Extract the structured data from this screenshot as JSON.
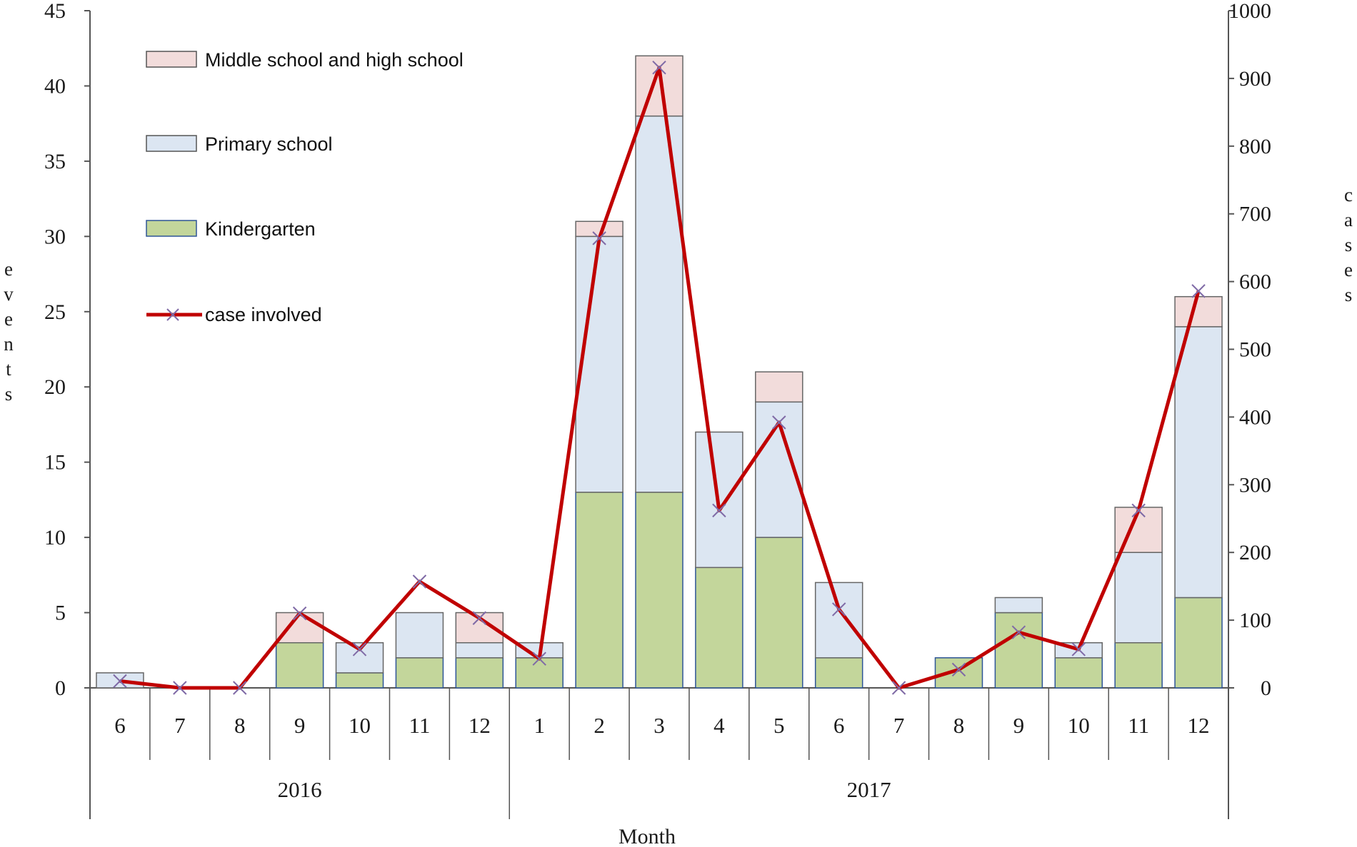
{
  "chart_data": {
    "type": "bar",
    "stacked": true,
    "title": "",
    "categories": [
      "6",
      "7",
      "8",
      "9",
      "10",
      "11",
      "12",
      "1",
      "2",
      "3",
      "4",
      "5",
      "6",
      "7",
      "8",
      "9",
      "10",
      "11",
      "12"
    ],
    "year_groups": [
      {
        "label": "2016",
        "count": 7
      },
      {
        "label": "2017",
        "count": 12
      }
    ],
    "xlabel": "Month",
    "ylabel": "events",
    "y2label": "cases",
    "ylim": [
      0,
      45
    ],
    "yticks": [
      "0",
      "5",
      "10",
      "15",
      "20",
      "25",
      "30",
      "35",
      "40",
      "45"
    ],
    "y2lim": [
      0,
      1000
    ],
    "y2ticks": [
      "0",
      "100",
      "200",
      "300",
      "400",
      "500",
      "600",
      "700",
      "800",
      "900",
      "1000"
    ],
    "series": [
      {
        "name": "Kindergarten",
        "color": "#c3d69b",
        "values": [
          0,
          0,
          0,
          3,
          1,
          2,
          2,
          2,
          13,
          13,
          8,
          10,
          2,
          0,
          2,
          5,
          2,
          3,
          6
        ]
      },
      {
        "name": "Primary school",
        "color": "#dce6f2",
        "values": [
          1,
          0,
          0,
          0,
          2,
          3,
          1,
          1,
          17,
          25,
          9,
          9,
          5,
          0,
          0,
          1,
          1,
          6,
          18
        ]
      },
      {
        "name": "Middle school and high school",
        "color": "#f2dcdb",
        "values": [
          0,
          0,
          0,
          2,
          0,
          0,
          2,
          0,
          1,
          4,
          0,
          2,
          0,
          0,
          0,
          0,
          0,
          3,
          2
        ]
      }
    ],
    "line_series": {
      "name": "case involved",
      "color": "#c00000",
      "marker_color": "#7f6aa6",
      "axis": "right",
      "values": [
        10,
        0,
        0,
        110,
        57,
        157,
        103,
        43,
        664,
        916,
        262,
        392,
        116,
        0,
        27,
        82,
        57,
        262,
        586
      ]
    },
    "legend": {
      "placement": "top-left"
    },
    "grid": false
  }
}
